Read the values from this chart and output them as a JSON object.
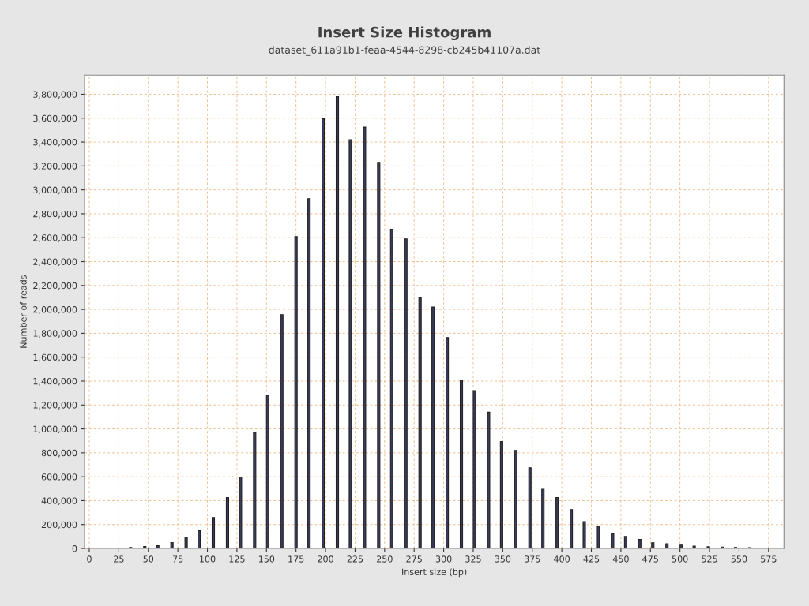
{
  "chart_data": {
    "type": "bar",
    "title": "Insert Size Histogram",
    "subtitle": "dataset_611a91b1-feaa-4544-8298-cb245b41107a.dat",
    "xlabel": "Insert size (bp)",
    "ylabel": "Number of reads",
    "x": [
      0,
      12,
      23,
      35,
      47,
      58,
      70,
      82,
      93,
      105,
      117,
      128,
      140,
      151,
      163,
      175,
      186,
      198,
      210,
      221,
      233,
      245,
      256,
      268,
      280,
      291,
      303,
      315,
      326,
      338,
      349,
      361,
      373,
      384,
      396,
      408,
      419,
      431,
      443,
      454,
      466,
      477,
      489,
      501,
      512,
      524,
      536,
      547,
      559,
      571,
      582
    ],
    "values": [
      2000,
      2000,
      3000,
      8000,
      16000,
      23000,
      50000,
      94000,
      149000,
      259000,
      426000,
      598000,
      971000,
      1282000,
      1956000,
      2609000,
      2927000,
      3595000,
      3780000,
      3420000,
      3525000,
      3230000,
      2670000,
      2590000,
      2100000,
      2020000,
      1765000,
      1410000,
      1320000,
      1140000,
      895000,
      820000,
      675000,
      495000,
      425000,
      325000,
      225000,
      185000,
      125000,
      100000,
      75000,
      48000,
      40000,
      28000,
      20000,
      15000,
      12000,
      8000,
      7000,
      3000,
      3000
    ],
    "color": "#3a3a5a",
    "xlim": [
      -4,
      588
    ],
    "xticks": [
      0,
      25,
      50,
      75,
      100,
      125,
      150,
      175,
      200,
      225,
      250,
      275,
      300,
      325,
      350,
      375,
      400,
      425,
      450,
      475,
      500,
      525,
      550,
      575
    ],
    "ylim": [
      0,
      3960000
    ],
    "yticks": [
      {
        "value": 0,
        "label": "0"
      },
      {
        "value": 200000,
        "label": "200,000"
      },
      {
        "value": 400000,
        "label": "400,000"
      },
      {
        "value": 600000,
        "label": "600,000"
      },
      {
        "value": 800000,
        "label": "800,000"
      },
      {
        "value": 1000000,
        "label": "1,000,000"
      },
      {
        "value": 1200000,
        "label": "1,200,000"
      },
      {
        "value": 1400000,
        "label": "1,400,000"
      },
      {
        "value": 1600000,
        "label": "1,600,000"
      },
      {
        "value": 1800000,
        "label": "1,800,000"
      },
      {
        "value": 2000000,
        "label": "2,000,000"
      },
      {
        "value": 2200000,
        "label": "2,200,000"
      },
      {
        "value": 2400000,
        "label": "2,400,000"
      },
      {
        "value": 2600000,
        "label": "2,600,000"
      },
      {
        "value": 2800000,
        "label": "2,800,000"
      },
      {
        "value": 3000000,
        "label": "3,000,000"
      },
      {
        "value": 3200000,
        "label": "3,200,000"
      },
      {
        "value": 3400000,
        "label": "3,400,000"
      },
      {
        "value": 3600000,
        "label": "3,600,000"
      },
      {
        "value": 3800000,
        "label": "3,800,000"
      }
    ],
    "grid": true
  }
}
